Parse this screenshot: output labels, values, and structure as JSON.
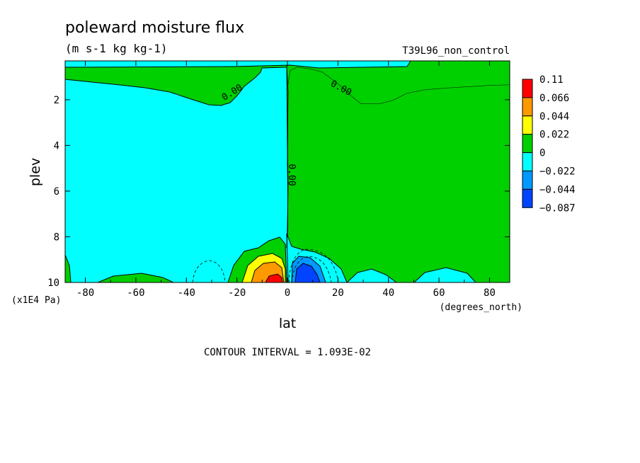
{
  "chart_data": {
    "type": "contour",
    "title": "poleward moisture flux",
    "subtitle": "(m s-1 kg kg-1)",
    "run_label": "T39L96_non_control",
    "xlabel": "lat",
    "x_units": "(degrees_north)",
    "ylabel": "plev",
    "y_units": "(x1E4 Pa)",
    "xlim": [
      -88,
      88
    ],
    "ylim": [
      10,
      0.3
    ],
    "x_ticks": [
      -80,
      -60,
      -40,
      -20,
      0,
      20,
      40,
      60,
      80
    ],
    "y_ticks": [
      2,
      4,
      6,
      8,
      10
    ],
    "footer": "CONTOUR INTERVAL = 1.093E-02",
    "contour_labels": [
      "0.00",
      "0.00",
      "0.00"
    ],
    "colorbar": {
      "labels": [
        "0.11",
        "0.066",
        "0.044",
        "0.022",
        "0",
        "−0.022",
        "−0.044",
        "−0.087"
      ],
      "colors": [
        "#ff0000",
        "#ff9900",
        "#ffff00",
        "#00d000",
        "#00ffff",
        "#0099ff",
        "#0044ff"
      ]
    },
    "colors": {
      "positive_fill": "#00d000",
      "negative_fill": "#00ffff"
    }
  }
}
